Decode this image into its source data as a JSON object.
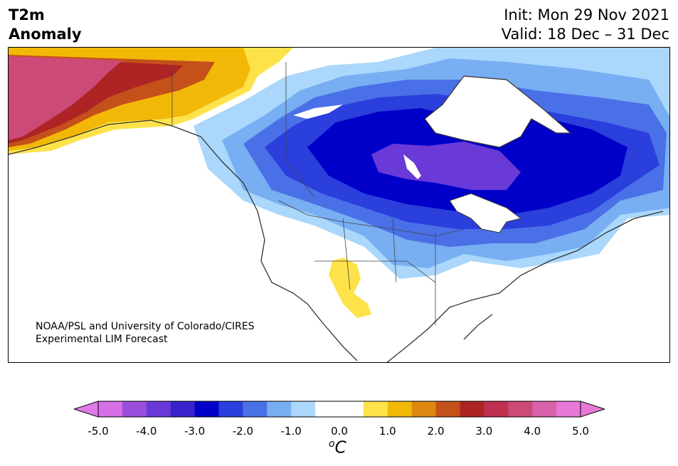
{
  "header": {
    "variable_line1": "T2m",
    "variable_line2": "Anomaly",
    "init_text": "Init: Mon 29 Nov 2021",
    "valid_text": "Valid: 18 Dec – 31 Dec"
  },
  "credit": {
    "line1": "NOAA/PSL and University of Colorado/CIRES",
    "line2": "Experimental LIM Forecast"
  },
  "colorbar": {
    "unit_base": "C",
    "unit_sup": "o",
    "tick_labels": [
      "-5.0",
      "-4.0",
      "-3.0",
      "-2.0",
      "-1.0",
      "0.0",
      "1.0",
      "2.0",
      "3.0",
      "4.0",
      "5.0"
    ],
    "bins": [
      "#d66ee6",
      "#9a4fdc",
      "#6a3ad8",
      "#3a22cc",
      "#0000c8",
      "#2a3fdc",
      "#4a70e8",
      "#78aef2",
      "#aad7fb",
      "#ffffff",
      "#ffffff",
      "#fde24a",
      "#f2b807",
      "#dc8810",
      "#c4501a",
      "#ae2424",
      "#c03050",
      "#cc4a78",
      "#d862a8",
      "#e878d8"
    ],
    "under_color": "#e07ae8",
    "over_color": "#e878d8"
  },
  "map": {
    "region": "North America",
    "anomaly_colors": {
      "strong_cold": "#0000c8",
      "extreme_cold": "#6a3ad8",
      "cold": "#2a3fdc",
      "cool": "#4a70e8",
      "mild_cool": "#78aef2",
      "slight_cool": "#aad7fb",
      "slight_warm": "#fde24a",
      "warm": "#f2b807",
      "very_warm": "#c4501a",
      "hot": "#ae2424",
      "extreme_warm": "#cc4a78"
    }
  }
}
